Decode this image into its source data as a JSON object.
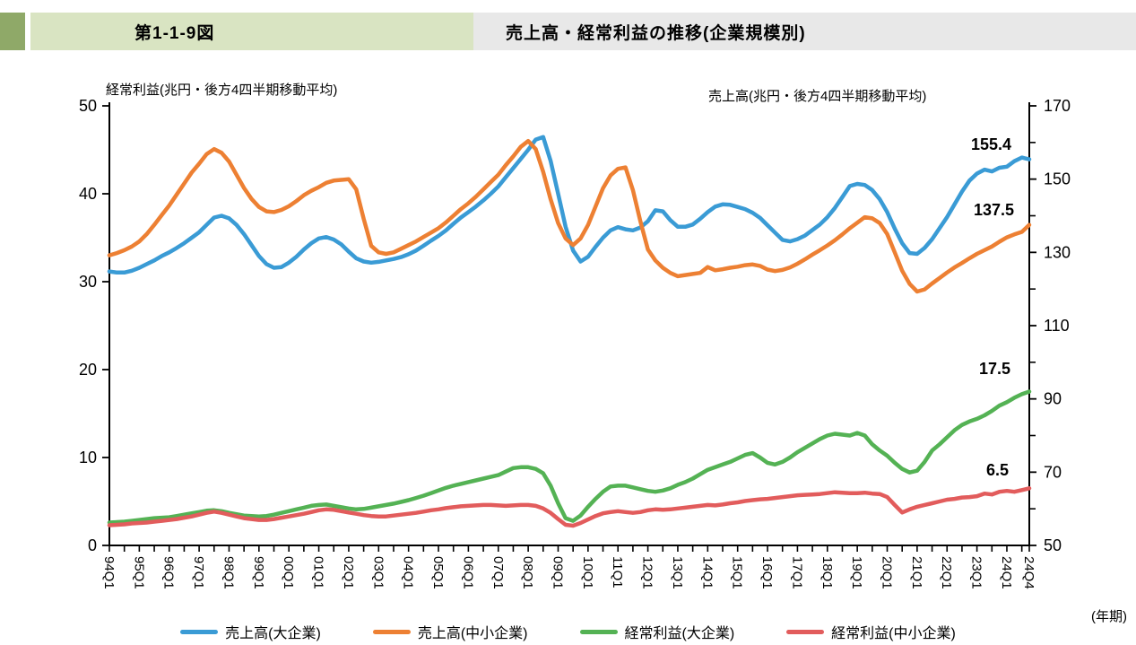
{
  "header": {
    "figure_number": "第1-1-9図",
    "title": "売上高・経常利益の推移(企業規模別)"
  },
  "colors": {
    "accent_green_dark": "#8FA968",
    "accent_green_light": "#D9E4C2",
    "title_bar_gray": "#E8E8E8",
    "axis_black": "#000000"
  },
  "chart_data": {
    "type": "line",
    "left_axis": {
      "title": "経常利益(兆円・後方4四半期移動平均)",
      "min": 0,
      "max": 50,
      "ticks": [
        0,
        10,
        20,
        30,
        40,
        50
      ]
    },
    "right_axis": {
      "title": "売上高(兆円・後方4四半期移動平均)",
      "min": 50,
      "max": 170,
      "major_ticks": [
        50,
        70,
        90,
        110,
        130,
        150,
        170
      ],
      "minor_ticks": [
        60,
        80,
        100,
        120,
        140,
        160
      ]
    },
    "x_axis": {
      "unit_note": "(年期)",
      "quarters_total": 124,
      "minor_tick_every": 2,
      "tick_labels": [
        "94Q1",
        "95Q1",
        "96Q1",
        "97Q1",
        "98Q1",
        "99Q1",
        "00Q1",
        "01Q1",
        "02Q1",
        "03Q1",
        "04Q1",
        "05Q1",
        "06Q1",
        "07Q1",
        "08Q1",
        "09Q1",
        "10Q1",
        "11Q1",
        "12Q1",
        "13Q1",
        "14Q1",
        "15Q1",
        "16Q1",
        "17Q1",
        "18Q1",
        "19Q1",
        "20Q1",
        "21Q1",
        "22Q1",
        "23Q1",
        "24Q1",
        "24Q4"
      ]
    },
    "legend_position": "bottom",
    "grid": false,
    "series": [
      {
        "name": "売上高(大企業)",
        "axis": "right",
        "color": "#3A9BD5",
        "end_label": "155.4",
        "values": [
          124.8,
          124.5,
          124.5,
          125.0,
          125.8,
          126.8,
          127.8,
          129.0,
          130.0,
          131.2,
          132.5,
          134.0,
          135.5,
          137.5,
          139.5,
          140.0,
          139.3,
          137.5,
          135.0,
          132.0,
          129.0,
          126.8,
          125.8,
          126.0,
          127.2,
          128.8,
          130.8,
          132.5,
          133.8,
          134.2,
          133.5,
          132.2,
          130.2,
          128.4,
          127.5,
          127.2,
          127.4,
          127.8,
          128.2,
          128.7,
          129.5,
          130.5,
          131.8,
          133.2,
          134.5,
          136.0,
          137.8,
          139.5,
          141.0,
          142.5,
          144.2,
          146.0,
          148.0,
          150.5,
          153.0,
          155.5,
          158.0,
          160.8,
          161.5,
          155.0,
          146.0,
          137.0,
          130.5,
          127.5,
          128.8,
          131.5,
          134.0,
          136.0,
          136.9,
          136.3,
          136.0,
          136.8,
          138.5,
          141.5,
          141.2,
          138.8,
          137.0,
          137.0,
          137.6,
          139.2,
          141.0,
          142.5,
          143.1,
          143.0,
          142.4,
          141.8,
          140.8,
          139.4,
          137.4,
          135.4,
          133.4,
          133.0,
          133.6,
          134.6,
          136.1,
          137.6,
          139.6,
          142.1,
          145.1,
          148.1,
          148.7,
          148.4,
          147.0,
          144.5,
          141.0,
          136.5,
          132.5,
          129.8,
          129.6,
          131.2,
          133.6,
          136.6,
          139.6,
          143.1,
          146.6,
          149.6,
          151.5,
          152.6,
          152.1,
          153.1,
          153.4,
          154.9,
          155.9,
          155.4
        ]
      },
      {
        "name": "売上高(中小企業)",
        "axis": "right",
        "color": "#ED8033",
        "end_label": "137.5",
        "values": [
          129.2,
          129.8,
          130.6,
          131.6,
          133.0,
          135.0,
          137.5,
          140.2,
          142.8,
          145.8,
          148.8,
          151.8,
          154.2,
          156.8,
          158.2,
          157.2,
          154.8,
          151.2,
          147.6,
          144.6,
          142.4,
          141.2,
          141.0,
          141.6,
          142.6,
          144.0,
          145.6,
          146.8,
          147.8,
          149.0,
          149.6,
          149.8,
          150.0,
          147.2,
          139.2,
          131.8,
          130.0,
          129.6,
          130.0,
          131.0,
          132.0,
          133.0,
          134.2,
          135.4,
          136.6,
          138.2,
          140.0,
          141.8,
          143.4,
          145.2,
          147.2,
          149.2,
          151.2,
          153.8,
          156.2,
          158.8,
          160.4,
          158.2,
          152.0,
          144.5,
          138.0,
          133.8,
          132.0,
          133.8,
          137.5,
          142.5,
          147.5,
          151.0,
          152.8,
          153.2,
          147.0,
          138.5,
          130.8,
          127.8,
          125.8,
          124.4,
          123.5,
          123.8,
          124.1,
          124.4,
          126.0,
          125.1,
          125.4,
          125.8,
          126.1,
          126.5,
          126.7,
          126.3,
          125.3,
          124.9,
          125.2,
          125.9,
          126.9,
          128.1,
          129.4,
          130.6,
          131.9,
          133.3,
          134.9,
          136.6,
          138.1,
          139.6,
          139.3,
          138.0,
          135.0,
          130.0,
          125.0,
          121.4,
          119.3,
          119.9,
          121.5,
          123.0,
          124.5,
          125.9,
          127.1,
          128.4,
          129.6,
          130.6,
          131.6,
          132.9,
          134.1,
          134.9,
          135.6,
          137.5
        ]
      },
      {
        "name": "経常利益(大企業)",
        "axis": "left",
        "color": "#54B254",
        "end_label": "17.5",
        "values": [
          2.6,
          2.65,
          2.7,
          2.8,
          2.9,
          3.0,
          3.1,
          3.15,
          3.2,
          3.35,
          3.5,
          3.65,
          3.8,
          3.95,
          4.0,
          3.9,
          3.7,
          3.55,
          3.4,
          3.35,
          3.3,
          3.35,
          3.5,
          3.7,
          3.9,
          4.1,
          4.3,
          4.5,
          4.6,
          4.65,
          4.5,
          4.35,
          4.2,
          4.1,
          4.15,
          4.3,
          4.45,
          4.6,
          4.75,
          4.95,
          5.15,
          5.4,
          5.65,
          5.95,
          6.25,
          6.55,
          6.8,
          7.0,
          7.2,
          7.4,
          7.6,
          7.8,
          8.0,
          8.4,
          8.8,
          8.9,
          8.9,
          8.7,
          8.2,
          6.8,
          4.8,
          3.1,
          2.8,
          3.4,
          4.4,
          5.3,
          6.1,
          6.7,
          6.8,
          6.8,
          6.6,
          6.4,
          6.2,
          6.1,
          6.25,
          6.5,
          6.9,
          7.2,
          7.6,
          8.1,
          8.6,
          8.9,
          9.2,
          9.5,
          9.9,
          10.3,
          10.5,
          10.0,
          9.4,
          9.2,
          9.5,
          10.0,
          10.6,
          11.1,
          11.6,
          12.1,
          12.5,
          12.7,
          12.6,
          12.5,
          12.8,
          12.5,
          11.5,
          10.8,
          10.2,
          9.4,
          8.7,
          8.3,
          8.5,
          9.5,
          10.8,
          11.5,
          12.3,
          13.1,
          13.7,
          14.1,
          14.4,
          14.8,
          15.3,
          15.9,
          16.3,
          16.8,
          17.2,
          17.5
        ]
      },
      {
        "name": "経常利益(中小企業)",
        "axis": "left",
        "color": "#E25C5C",
        "end_label": "6.5",
        "values": [
          2.3,
          2.35,
          2.4,
          2.5,
          2.55,
          2.6,
          2.7,
          2.8,
          2.9,
          3.0,
          3.15,
          3.3,
          3.5,
          3.7,
          3.85,
          3.7,
          3.5,
          3.3,
          3.1,
          3.0,
          2.9,
          2.9,
          3.0,
          3.15,
          3.3,
          3.45,
          3.6,
          3.8,
          4.0,
          4.1,
          4.05,
          3.9,
          3.75,
          3.6,
          3.45,
          3.35,
          3.3,
          3.3,
          3.4,
          3.5,
          3.6,
          3.7,
          3.85,
          4.0,
          4.1,
          4.25,
          4.35,
          4.45,
          4.5,
          4.55,
          4.6,
          4.6,
          4.55,
          4.5,
          4.55,
          4.6,
          4.6,
          4.5,
          4.2,
          3.7,
          3.0,
          2.35,
          2.25,
          2.55,
          2.95,
          3.35,
          3.65,
          3.8,
          3.9,
          3.8,
          3.7,
          3.8,
          4.0,
          4.1,
          4.05,
          4.1,
          4.2,
          4.3,
          4.4,
          4.5,
          4.6,
          4.55,
          4.65,
          4.8,
          4.9,
          5.05,
          5.15,
          5.25,
          5.3,
          5.4,
          5.5,
          5.6,
          5.7,
          5.75,
          5.8,
          5.85,
          5.95,
          6.05,
          6.0,
          5.95,
          5.95,
          6.0,
          5.9,
          5.85,
          5.5,
          4.6,
          3.75,
          4.1,
          4.4,
          4.6,
          4.8,
          5.0,
          5.2,
          5.3,
          5.45,
          5.5,
          5.6,
          5.9,
          5.8,
          6.1,
          6.2,
          6.1,
          6.3,
          6.5
        ]
      }
    ]
  }
}
